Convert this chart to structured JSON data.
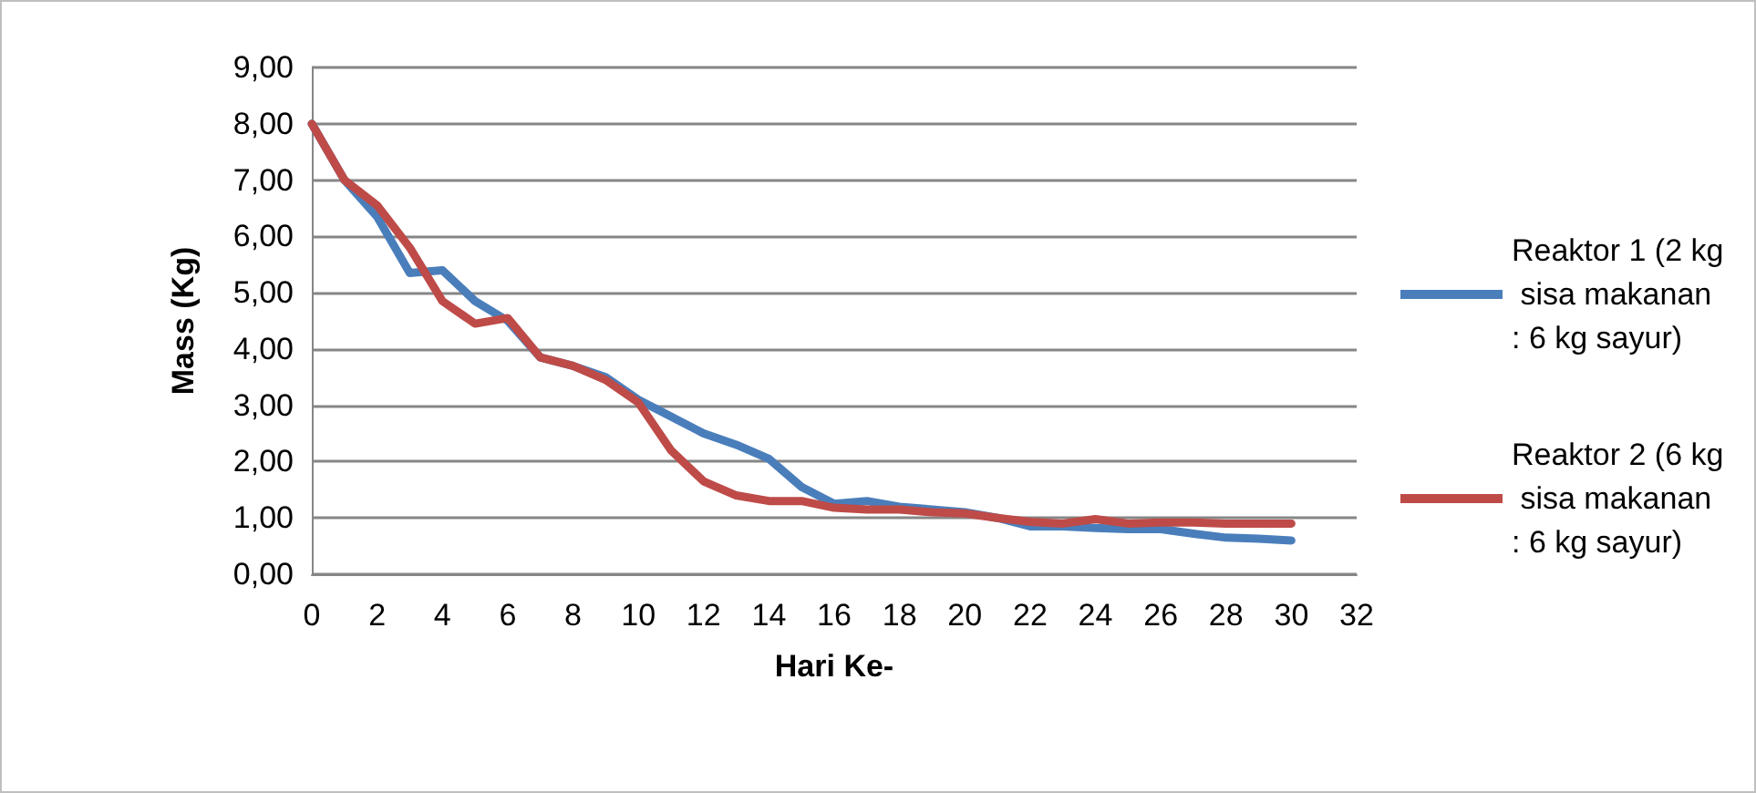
{
  "chart_data": {
    "type": "line",
    "xlabel": "Hari Ke-",
    "ylabel": "Mass (Kg)",
    "x": [
      0,
      1,
      2,
      3,
      4,
      5,
      6,
      7,
      8,
      9,
      10,
      11,
      12,
      13,
      14,
      15,
      16,
      17,
      18,
      19,
      20,
      21,
      22,
      23,
      24,
      25,
      26,
      27,
      28,
      29,
      30
    ],
    "series": [
      {
        "name": "Reaktor 1 (2 kg sisa makanan : 6 kg sayur)",
        "color": "#4a7ebb",
        "values": [
          8.0,
          7.0,
          6.35,
          5.35,
          5.4,
          4.85,
          4.5,
          3.85,
          3.7,
          3.5,
          3.1,
          2.8,
          2.5,
          2.3,
          2.05,
          1.55,
          1.25,
          1.3,
          1.2,
          1.15,
          1.1,
          1.0,
          0.85,
          0.85,
          0.82,
          0.8,
          0.8,
          0.72,
          0.65,
          0.63,
          0.6
        ]
      },
      {
        "name": "Reaktor 2 (6 kg sisa makanan : 6 kg sayur)",
        "color": "#be4b48",
        "values": [
          8.0,
          7.0,
          6.55,
          5.8,
          4.85,
          4.45,
          4.55,
          3.85,
          3.7,
          3.45,
          3.05,
          2.2,
          1.65,
          1.4,
          1.3,
          1.3,
          1.18,
          1.15,
          1.15,
          1.1,
          1.08,
          1.0,
          0.93,
          0.9,
          0.98,
          0.9,
          0.92,
          0.92,
          0.9,
          0.9,
          0.9
        ]
      }
    ],
    "xlim": [
      0,
      32
    ],
    "xticks": [
      0,
      2,
      4,
      6,
      8,
      10,
      12,
      14,
      16,
      18,
      20,
      22,
      24,
      26,
      28,
      30,
      32
    ],
    "ylim": [
      0,
      9
    ],
    "yticks": [
      {
        "value": 0,
        "label": "0,00"
      },
      {
        "value": 1,
        "label": "1,00"
      },
      {
        "value": 2,
        "label": "2,00"
      },
      {
        "value": 3,
        "label": "3,00"
      },
      {
        "value": 4,
        "label": "4,00"
      },
      {
        "value": 5,
        "label": "5,00"
      },
      {
        "value": 6,
        "label": "6,00"
      },
      {
        "value": 7,
        "label": "7,00"
      },
      {
        "value": 8,
        "label": "8,00"
      },
      {
        "value": 9,
        "label": "9,00"
      }
    ],
    "grid": "y",
    "legend": "right",
    "marker": "none",
    "line_style": "solid"
  }
}
